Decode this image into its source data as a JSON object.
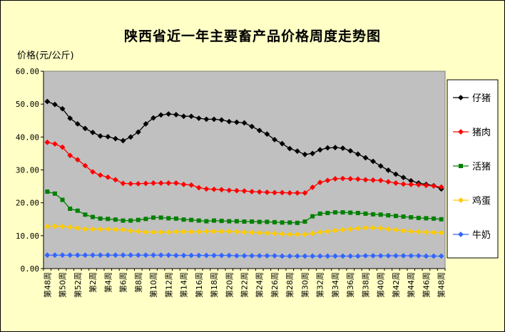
{
  "chart_data": {
    "type": "line",
    "title": "陕西省近一年主要畜产品价格周度走势图",
    "ylabel": "价格(元/公斤)",
    "xlabel": "",
    "ylim": [
      0,
      60
    ],
    "yticks": [
      "0.00",
      "10.00",
      "20.00",
      "30.00",
      "40.00",
      "50.00",
      "60.00"
    ],
    "grid": false,
    "legend_position": "right",
    "plot_background": "#c0c0c0",
    "page_background": "#ffffc6",
    "x": [
      "第48周",
      "第49周",
      "第50周",
      "第51周",
      "第52周",
      "第1周",
      "第2周",
      "第3周",
      "第4周",
      "第5周",
      "第6周",
      "第7周",
      "第8周",
      "第9周",
      "第10周",
      "第11周",
      "第12周",
      "第13周",
      "第14周",
      "第15周",
      "第16周",
      "第17周",
      "第18周",
      "第19周",
      "第20周",
      "第21周",
      "第22周",
      "第23周",
      "第24周",
      "第25周",
      "第26周",
      "第27周",
      "第28周",
      "第29周",
      "第30周",
      "第31周",
      "第32周",
      "第33周",
      "第34周",
      "第35周",
      "第36周",
      "第37周",
      "第38周",
      "第39周",
      "第40周",
      "第41周",
      "第42周",
      "第43周",
      "第44周",
      "第45周",
      "第46周",
      "第47周",
      "第48周"
    ],
    "x_tick_labels": [
      "第48周",
      "第50周",
      "第52周",
      "第2周",
      "第4周",
      "第6周",
      "第8周",
      "第10周",
      "第12周",
      "第14周",
      "第16周",
      "第18周",
      "第20周",
      "第22周",
      "第24周",
      "第26周",
      "第28周",
      "第30周",
      "第32周",
      "第34周",
      "第36周",
      "第38周",
      "第40周",
      "第42周",
      "第44周",
      "第46周",
      "第48周"
    ],
    "series": [
      {
        "name": "仔猪",
        "color": "#000000",
        "marker": "diamond",
        "values": [
          50.8,
          49.9,
          48.6,
          45.7,
          44.0,
          42.6,
          41.4,
          40.3,
          40.1,
          39.5,
          38.9,
          40.0,
          41.5,
          44.0,
          45.8,
          46.7,
          47.0,
          46.8,
          46.3,
          46.3,
          45.7,
          45.4,
          45.4,
          45.2,
          44.7,
          44.5,
          44.3,
          43.2,
          42.0,
          40.9,
          39.2,
          38.0,
          36.5,
          35.7,
          34.7,
          35.0,
          36.1,
          36.7,
          36.8,
          36.6,
          35.8,
          34.8,
          33.7,
          32.6,
          31.2,
          29.9,
          28.7,
          27.7,
          26.7,
          26.0,
          25.6,
          25.2,
          24.2
        ]
      },
      {
        "name": "猪肉",
        "color": "#ff0000",
        "marker": "diamond",
        "values": [
          38.4,
          37.9,
          36.9,
          34.4,
          33.1,
          31.3,
          29.4,
          28.4,
          27.8,
          27.0,
          25.9,
          25.8,
          25.8,
          25.9,
          26.0,
          26.0,
          26.0,
          26.0,
          25.6,
          25.4,
          24.6,
          24.2,
          24.1,
          24.0,
          23.8,
          23.7,
          23.6,
          23.4,
          23.3,
          23.2,
          23.1,
          23.1,
          23.0,
          23.0,
          23.0,
          24.7,
          26.2,
          26.8,
          27.3,
          27.4,
          27.3,
          27.2,
          27.0,
          26.9,
          26.8,
          26.4,
          26.0,
          25.7,
          25.6,
          25.5,
          25.3,
          25.1,
          24.8
        ]
      },
      {
        "name": "活猪",
        "color": "#008000",
        "marker": "square",
        "values": [
          23.4,
          22.8,
          20.9,
          18.2,
          17.6,
          16.4,
          15.7,
          15.2,
          15.1,
          14.9,
          14.6,
          14.6,
          14.8,
          15.1,
          15.5,
          15.5,
          15.3,
          15.2,
          14.9,
          14.8,
          14.6,
          14.4,
          14.6,
          14.5,
          14.4,
          14.4,
          14.3,
          14.3,
          14.2,
          14.2,
          14.1,
          14.0,
          14.0,
          13.9,
          14.3,
          15.9,
          16.7,
          16.9,
          17.1,
          17.1,
          17.0,
          16.9,
          16.7,
          16.5,
          16.4,
          16.2,
          16.0,
          15.8,
          15.6,
          15.4,
          15.3,
          15.2,
          15.0
        ]
      },
      {
        "name": "鸡蛋",
        "color": "#ffcc00",
        "marker": "diamond",
        "values": [
          12.8,
          12.9,
          12.8,
          12.6,
          12.3,
          12.0,
          12.0,
          12.0,
          12.0,
          11.9,
          11.8,
          11.5,
          11.3,
          11.1,
          11.1,
          11.1,
          11.1,
          11.2,
          11.2,
          11.2,
          11.2,
          11.3,
          11.3,
          11.3,
          11.3,
          11.2,
          11.1,
          11.0,
          10.9,
          10.8,
          10.7,
          10.5,
          10.4,
          10.4,
          10.4,
          10.7,
          11.1,
          11.3,
          11.6,
          11.8,
          12.0,
          12.2,
          12.4,
          12.4,
          12.3,
          12.0,
          11.8,
          11.5,
          11.3,
          11.2,
          11.1,
          11.0,
          10.9
        ]
      },
      {
        "name": "牛奶",
        "color": "#3366ff",
        "marker": "diamond",
        "values": [
          4.1,
          4.1,
          4.1,
          4.1,
          4.1,
          4.1,
          4.1,
          4.1,
          4.1,
          4.1,
          4.1,
          4.1,
          4.1,
          4.1,
          4.1,
          4.1,
          4.1,
          4.0,
          4.0,
          4.0,
          4.0,
          4.0,
          4.0,
          4.0,
          4.0,
          3.9,
          3.9,
          3.9,
          3.9,
          3.9,
          3.9,
          3.8,
          3.8,
          3.8,
          3.8,
          3.8,
          3.8,
          3.8,
          3.8,
          3.8,
          3.8,
          3.8,
          3.9,
          3.9,
          3.9,
          3.9,
          3.9,
          3.9,
          3.9,
          3.9,
          3.8,
          3.8,
          3.8
        ]
      }
    ]
  }
}
